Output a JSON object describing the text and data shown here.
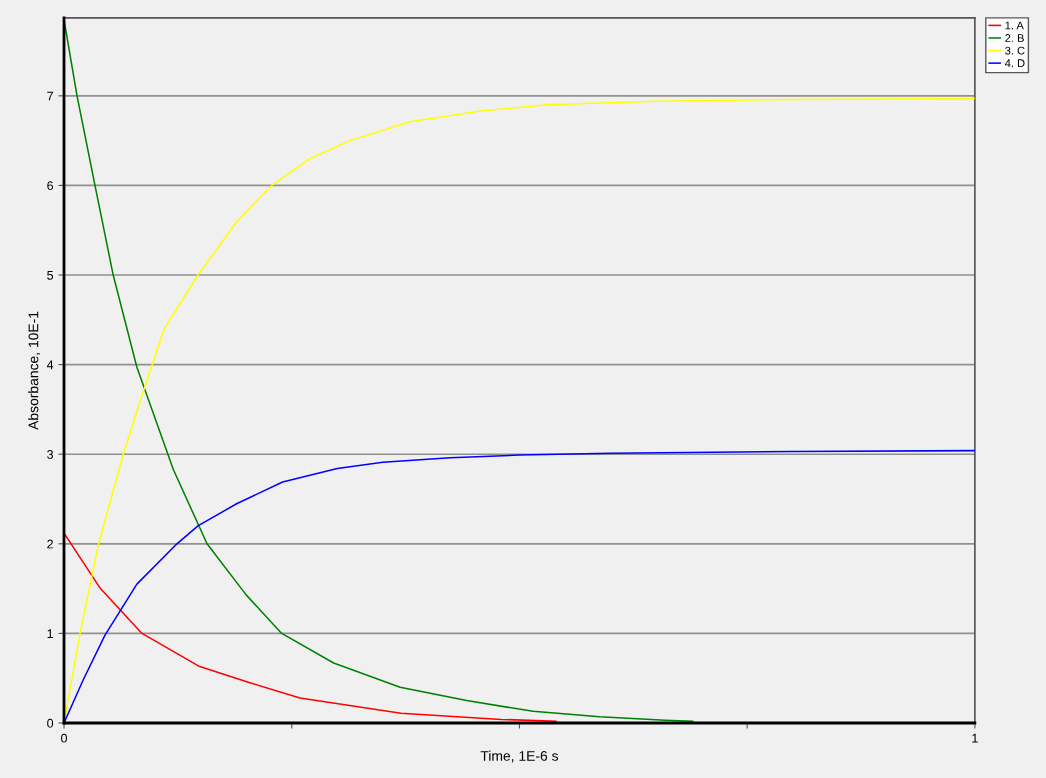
{
  "chart_data": {
    "type": "line",
    "xlabel": "Time, 1E-6 s",
    "ylabel": "Absorbance, 10E-1",
    "xlim": [
      0,
      1
    ],
    "ylim": [
      0,
      7.87
    ],
    "xticks": [
      0,
      {
        "value": 0.25,
        "label": null
      },
      {
        "value": 0.5,
        "label": null
      },
      {
        "value": 0.75,
        "label": null
      },
      1
    ],
    "yticks": [
      0,
      1,
      2,
      3,
      4,
      5,
      6,
      7
    ],
    "grid": "y",
    "legend": "top right",
    "marker": "none",
    "line_style": "solid",
    "series": [
      {
        "name": "1. A",
        "color": "#ff0000",
        "x": [
          0,
          0.04,
          0.0856,
          0.149,
          0.204,
          0.259,
          0.31,
          0.37,
          0.48,
          0.54
        ],
        "values": [
          2.12,
          1.5,
          1.0,
          0.63,
          0.45,
          0.28,
          0.2,
          0.11,
          0.04,
          0.02
        ]
      },
      {
        "name": "2. B",
        "color": "#008000",
        "x": [
          0,
          0.0143,
          0.034,
          0.054,
          0.08,
          0.12,
          0.157,
          0.2,
          0.239,
          0.296,
          0.369,
          0.442,
          0.515,
          0.588,
          0.66,
          0.69
        ],
        "values": [
          7.85,
          7,
          6,
          5,
          3.97,
          2.83,
          2.0,
          1.43,
          1.0,
          0.67,
          0.4,
          0.25,
          0.13,
          0.07,
          0.03,
          0.02
        ]
      },
      {
        "name": "3. C",
        "color": "#ffff00",
        "x": [
          0,
          0.0176,
          0.038,
          0.065,
          0.087,
          0.11,
          0.147,
          0.19,
          0.228,
          0.27,
          0.314,
          0.38,
          0.457,
          0.53,
          0.65,
          0.8,
          1
        ],
        "values": [
          0,
          1,
          2,
          3,
          3.7,
          4.4,
          5,
          5.6,
          6.0,
          6.3,
          6.5,
          6.71,
          6.83,
          6.9,
          6.94,
          6.96,
          6.97
        ]
      },
      {
        "name": "4. D",
        "color": "#0000ff",
        "x": [
          0,
          0.021,
          0.045,
          0.08,
          0.124,
          0.147,
          0.19,
          0.24,
          0.3,
          0.35,
          0.424,
          0.5,
          0.6,
          0.8,
          1
        ],
        "values": [
          0,
          0.48,
          0.98,
          1.55,
          2.0,
          2.2,
          2.45,
          2.69,
          2.84,
          2.91,
          2.96,
          2.99,
          3.01,
          3.03,
          3.04
        ]
      }
    ]
  }
}
